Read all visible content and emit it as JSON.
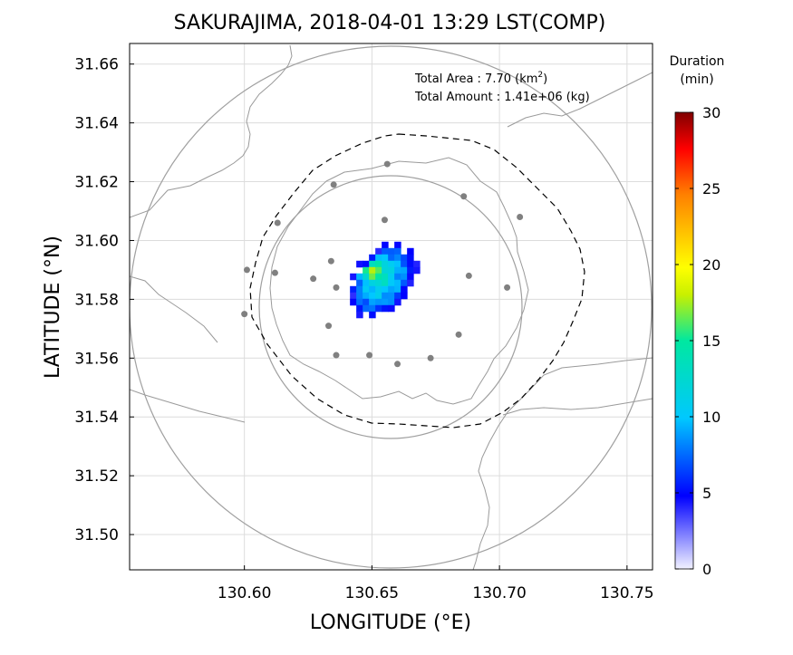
{
  "chart_data": {
    "type": "heatmap",
    "title": "SAKURAJIMA, 2018-04-01 13:29 LST(COMP)",
    "xlabel": "LONGITUDE (°E)",
    "ylabel": "LATITUDE (°N)",
    "xlim": [
      130.555,
      130.76
    ],
    "ylim": [
      31.488,
      31.667
    ],
    "x_ticks": [
      "130.60",
      "130.65",
      "130.70",
      "130.75"
    ],
    "x_tick_values": [
      130.6,
      130.65,
      130.7,
      130.75
    ],
    "y_ticks": [
      "31.50",
      "31.52",
      "31.54",
      "31.56",
      "31.58",
      "31.60",
      "31.62",
      "31.64",
      "31.66"
    ],
    "y_tick_values": [
      31.5,
      31.52,
      31.54,
      31.56,
      31.58,
      31.6,
      31.62,
      31.64,
      31.66
    ],
    "grid": true,
    "annotations": {
      "area_label": "Total Area   : 7.70 (km",
      "area_sup": "2",
      "area_close": ")",
      "amount_label": "Total Amount : 1.41e+06 (kg)"
    },
    "colorbar": {
      "title_line1": "Duration",
      "title_line2": "(min)",
      "min": 0,
      "max": 30,
      "ticks": [
        "0",
        "5",
        "10",
        "15",
        "20",
        "25",
        "30"
      ],
      "tick_values": [
        0,
        5,
        10,
        15,
        20,
        25,
        30
      ],
      "colormap": [
        "#f2f2ff",
        "#0000ff",
        "#00c8ff",
        "#00e8a0",
        "#c8f000",
        "#ffff00",
        "#ff8000",
        "#ff0000",
        "#800000"
      ]
    },
    "heatmap_region": {
      "center": [
        130.654,
        31.5865
      ],
      "peak_duration": 19,
      "typical_duration": 10,
      "edge_duration": 6
    },
    "circles": [
      {
        "center": [
          130.6587,
          31.5775
        ],
        "radius_lon": 0.0775,
        "radius_lat": 0.0893,
        "style": "solid"
      },
      {
        "center": [
          130.6587,
          31.5775
        ],
        "radius_lon": 0.0425,
        "radius_lat": 0.0455,
        "style": "solid"
      }
    ],
    "stations": [
      [
        130.656,
        31.626
      ],
      [
        130.635,
        31.619
      ],
      [
        130.686,
        31.615
      ],
      [
        130.655,
        31.607
      ],
      [
        130.708,
        31.608
      ],
      [
        130.613,
        31.606
      ],
      [
        130.601,
        31.59
      ],
      [
        130.612,
        31.589
      ],
      [
        130.634,
        31.593
      ],
      [
        130.627,
        31.587
      ],
      [
        130.688,
        31.588
      ],
      [
        130.703,
        31.584
      ],
      [
        130.636,
        31.584
      ],
      [
        130.6,
        31.575
      ],
      [
        130.633,
        31.571
      ],
      [
        130.684,
        31.568
      ],
      [
        130.636,
        31.561
      ],
      [
        130.649,
        31.561
      ],
      [
        130.66,
        31.558
      ],
      [
        130.673,
        31.56
      ]
    ]
  }
}
